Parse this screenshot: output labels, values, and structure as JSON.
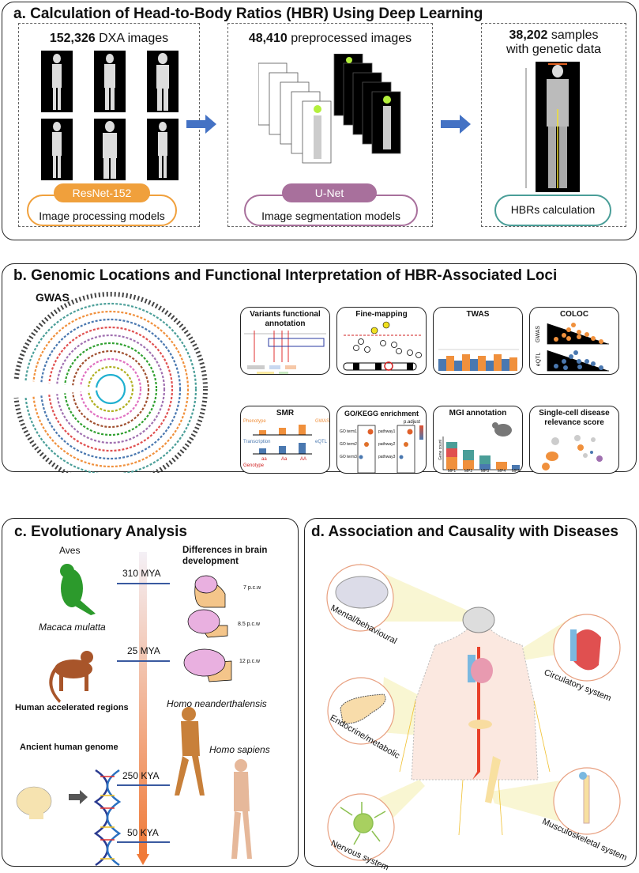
{
  "panel_a": {
    "title": "a. Calculation of Head-to-Body Ratios (HBR) Using Deep Learning",
    "step1": {
      "count": "152,326",
      "label": " DXA images",
      "model_name": "ResNet-152",
      "model_desc": "Image processing models",
      "color": "#f0a03c"
    },
    "step2": {
      "count": "48,410",
      "label": " preprocessed images",
      "model_name": "U-Net",
      "model_desc": "Image segmentation models",
      "color": "#a8709c"
    },
    "step3": {
      "count": "38,202",
      "label": " samples",
      "label2": "with genetic data",
      "model_desc": "HBRs calculation",
      "color": "#4a9e98"
    },
    "arrow_color": "#4472c4"
  },
  "panel_b": {
    "title": "b. Genomic Locations and Functional Interpretation of HBR-Associated Loci",
    "gwas_label": "GWAS",
    "cards": [
      {
        "title": "Variants  functional annotation"
      },
      {
        "title": "Fine-mapping"
      },
      {
        "title": "TWAS"
      },
      {
        "title": "COLOC",
        "y1": "GWAS",
        "y2": "eQTL"
      },
      {
        "title": "SMR",
        "phenotype": "Phenotype",
        "gwas": "GWAS",
        "transcription": "Transcription",
        "eqtl": "eQTL",
        "genotype": "Genotype",
        "g1": "aa",
        "g2": "Aa",
        "g3": "AA"
      },
      {
        "title": "GO/KEGG enrichment",
        "legend": "p.adjust",
        "terms": [
          "GO term1",
          "GO term2",
          "GO term3"
        ],
        "pathways": [
          "pathway1",
          "pathway2",
          "pathway3"
        ]
      },
      {
        "title": "MGI annotation",
        "ylabel": "Gene count",
        "cats": [
          "MP1",
          "MP2",
          "MP3",
          "MP4",
          "MP5"
        ]
      },
      {
        "title": "Single-cell disease relevance score"
      }
    ]
  },
  "panel_c": {
    "title": "c. Evolutionary Analysis",
    "aves": "Aves",
    "macaca": "Macaca mulatta",
    "brain_heading": "Differences in brain development",
    "stages": [
      "7 p.c.w",
      "8.5 p.c.w",
      "12 p.c.w"
    ],
    "times": [
      "310 MYA",
      "25 MYA",
      "250 KYA",
      "50 KYA"
    ],
    "har": "Human accelerated regions",
    "ancient": "Ancient human genome",
    "neanderthal": "Homo neanderthalensis",
    "sapiens": "Homo sapiens"
  },
  "panel_d": {
    "title": "d. Association and Causality with Diseases",
    "systems": [
      "Mental/behavioural",
      "Circulatory system",
      "Endocrine/metabolic",
      "Nervous system",
      "Musculoskeletal system"
    ]
  }
}
